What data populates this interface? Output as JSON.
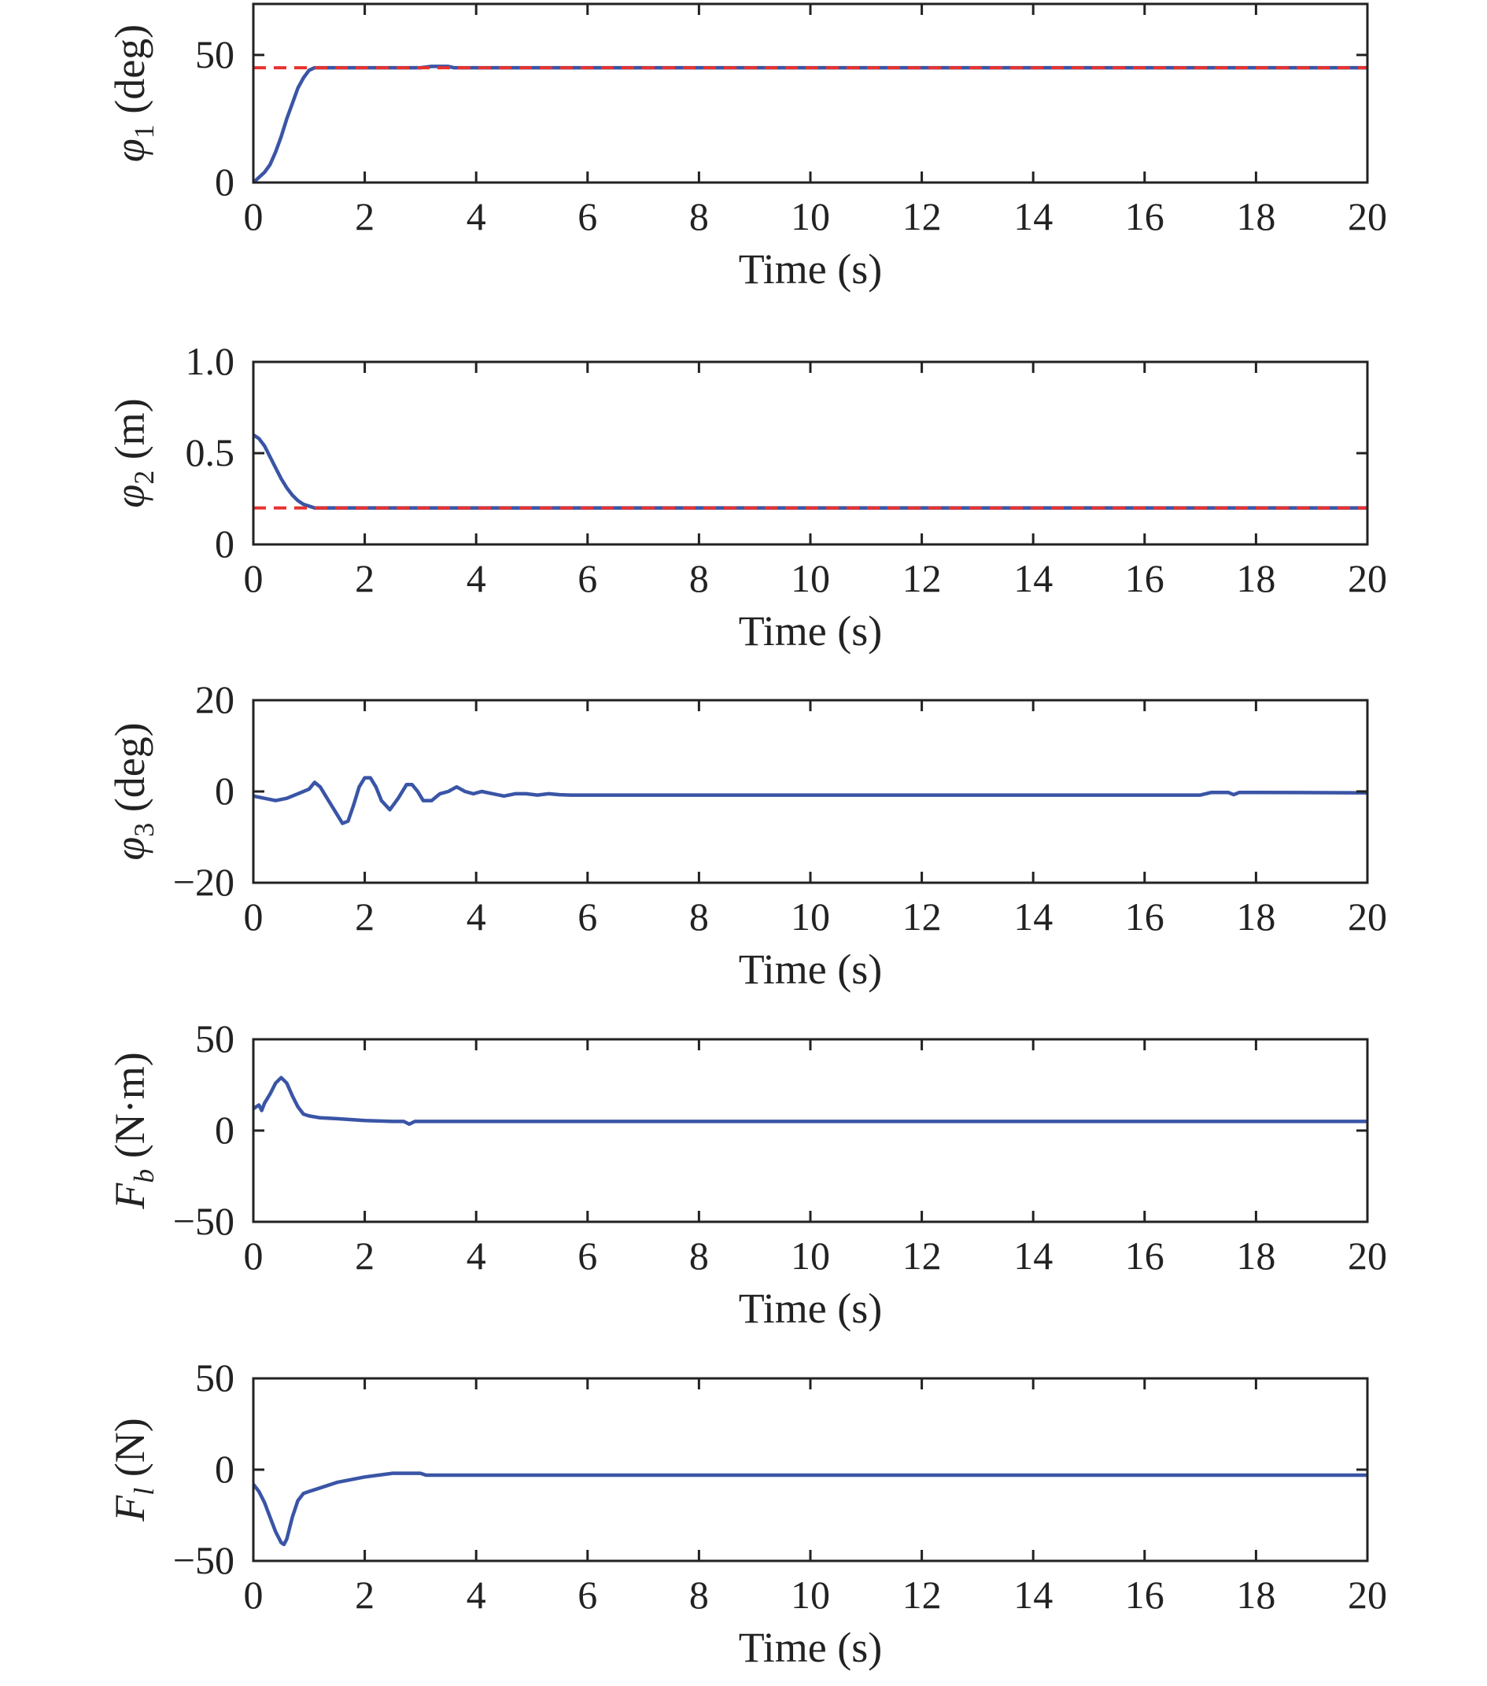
{
  "colors": {
    "response": "#3a55a6",
    "reference": "#e8322e",
    "axes": "#222222"
  },
  "chart_data": [
    {
      "type": "line",
      "ylabel": {
        "symbol": "φ",
        "sub": "1",
        "unit": "(deg)"
      },
      "xlabel": "Time (s)",
      "xlim": [
        0,
        20
      ],
      "ylim": [
        0,
        70
      ],
      "xticks": [
        0,
        2,
        4,
        6,
        8,
        10,
        12,
        14,
        16,
        18,
        20
      ],
      "yticks": [
        0,
        50
      ],
      "ytick_labels": [
        "0",
        "50"
      ],
      "grid": false,
      "series": [
        {
          "style": "solid",
          "color": "#3a55a6",
          "x": [
            0,
            0.1,
            0.2,
            0.3,
            0.4,
            0.5,
            0.6,
            0.7,
            0.8,
            0.9,
            1.0,
            1.1,
            1.3,
            2,
            3,
            3.2,
            3.5,
            3.6,
            5,
            10,
            15,
            20
          ],
          "y": [
            0,
            2,
            4,
            7,
            12,
            18,
            25,
            31,
            37,
            41,
            44,
            45,
            45,
            45,
            45,
            45.5,
            45.5,
            45,
            45,
            45,
            45,
            45
          ]
        },
        {
          "style": "dashed",
          "color": "#e8322e",
          "x": [
            0,
            20
          ],
          "y": [
            45,
            45
          ]
        }
      ]
    },
    {
      "type": "line",
      "ylabel": {
        "symbol": "φ",
        "sub": "2",
        "unit": "(m)"
      },
      "xlabel": "Time (s)",
      "xlim": [
        0,
        20
      ],
      "ylim": [
        0,
        1.0
      ],
      "xticks": [
        0,
        2,
        4,
        6,
        8,
        10,
        12,
        14,
        16,
        18,
        20
      ],
      "yticks": [
        0,
        0.5,
        1.0
      ],
      "ytick_labels": [
        "0",
        "0.5",
        "1.0"
      ],
      "grid": false,
      "series": [
        {
          "style": "solid",
          "color": "#3a55a6",
          "x": [
            0,
            0.1,
            0.2,
            0.3,
            0.4,
            0.5,
            0.6,
            0.7,
            0.8,
            0.9,
            1.0,
            1.1,
            1.2,
            1.5,
            5,
            10,
            15,
            20
          ],
          "y": [
            0.6,
            0.58,
            0.54,
            0.48,
            0.42,
            0.36,
            0.31,
            0.27,
            0.24,
            0.22,
            0.21,
            0.2,
            0.2,
            0.2,
            0.2,
            0.2,
            0.2,
            0.2
          ]
        },
        {
          "style": "dashed",
          "color": "#e8322e",
          "x": [
            0,
            20
          ],
          "y": [
            0.2,
            0.2
          ]
        }
      ]
    },
    {
      "type": "line",
      "ylabel": {
        "symbol": "φ",
        "sub": "3",
        "unit": "(deg)"
      },
      "xlabel": "Time (s)",
      "xlim": [
        0,
        20
      ],
      "ylim": [
        -20,
        20
      ],
      "xticks": [
        0,
        2,
        4,
        6,
        8,
        10,
        12,
        14,
        16,
        18,
        20
      ],
      "yticks": [
        -20,
        0,
        20
      ],
      "ytick_labels": [
        "−20",
        "0",
        "20"
      ],
      "grid": false,
      "series": [
        {
          "style": "solid",
          "color": "#3a55a6",
          "x": [
            0,
            0.2,
            0.4,
            0.6,
            0.8,
            1.0,
            1.1,
            1.2,
            1.3,
            1.45,
            1.6,
            1.7,
            1.8,
            1.9,
            2.0,
            2.1,
            2.2,
            2.3,
            2.45,
            2.6,
            2.75,
            2.85,
            2.95,
            3.05,
            3.2,
            3.35,
            3.5,
            3.65,
            3.8,
            3.95,
            4.1,
            4.3,
            4.5,
            4.7,
            4.9,
            5.1,
            5.3,
            5.5,
            5.7,
            6,
            10,
            15,
            17,
            17.2,
            17.5,
            17.6,
            17.7,
            17.8,
            18,
            20
          ],
          "y": [
            -1,
            -1.5,
            -2,
            -1.5,
            -0.5,
            0.5,
            2,
            1,
            -1,
            -4,
            -7,
            -6.5,
            -3,
            1,
            3,
            3,
            1,
            -2,
            -4,
            -1.5,
            1.5,
            1.5,
            0,
            -2,
            -2,
            -0.5,
            0,
            1,
            0,
            -0.5,
            0,
            -0.5,
            -1,
            -0.5,
            -0.5,
            -0.8,
            -0.5,
            -0.7,
            -0.8,
            -0.8,
            -0.8,
            -0.8,
            -0.8,
            -0.2,
            -0.2,
            -0.7,
            -0.2,
            -0.2,
            -0.2,
            -0.3
          ]
        }
      ]
    },
    {
      "type": "line",
      "ylabel": {
        "symbol": "F",
        "sub": "b",
        "unit": "(N·m)"
      },
      "xlabel": "Time (s)",
      "xlim": [
        0,
        20
      ],
      "ylim": [
        -50,
        50
      ],
      "xticks": [
        0,
        2,
        4,
        6,
        8,
        10,
        12,
        14,
        16,
        18,
        20
      ],
      "yticks": [
        -50,
        0,
        50
      ],
      "ytick_labels": [
        "−50",
        "0",
        "50"
      ],
      "grid": false,
      "series": [
        {
          "style": "solid",
          "color": "#3a55a6",
          "x": [
            0,
            0.1,
            0.15,
            0.2,
            0.3,
            0.4,
            0.5,
            0.6,
            0.7,
            0.8,
            0.9,
            1.0,
            1.2,
            1.5,
            2,
            2.5,
            2.7,
            2.8,
            2.9,
            3,
            5,
            10,
            15,
            20
          ],
          "y": [
            12,
            14,
            11,
            15,
            20,
            26,
            29,
            26,
            19,
            13,
            9,
            8,
            7,
            6.5,
            5.5,
            5,
            5,
            3.5,
            5,
            5,
            5,
            5,
            5,
            5
          ]
        }
      ]
    },
    {
      "type": "line",
      "ylabel": {
        "symbol": "F",
        "sub": "l",
        "unit": "(N)"
      },
      "xlabel": "Time (s)",
      "xlim": [
        0,
        20
      ],
      "ylim": [
        -50,
        50
      ],
      "xticks": [
        0,
        2,
        4,
        6,
        8,
        10,
        12,
        14,
        16,
        18,
        20
      ],
      "yticks": [
        -50,
        0,
        50
      ],
      "ytick_labels": [
        "−50",
        "0",
        "50"
      ],
      "grid": false,
      "series": [
        {
          "style": "solid",
          "color": "#3a55a6",
          "x": [
            0,
            0.1,
            0.2,
            0.3,
            0.4,
            0.5,
            0.55,
            0.6,
            0.7,
            0.8,
            0.9,
            1.0,
            1.2,
            1.5,
            2.0,
            2.5,
            2.8,
            3.0,
            3.1,
            5,
            10,
            15,
            20
          ],
          "y": [
            -8,
            -12,
            -18,
            -26,
            -34,
            -40,
            -41,
            -38,
            -26,
            -17,
            -13,
            -12,
            -10,
            -7,
            -4,
            -2,
            -2,
            -2,
            -3,
            -3,
            -3,
            -3,
            -3
          ]
        }
      ]
    }
  ]
}
